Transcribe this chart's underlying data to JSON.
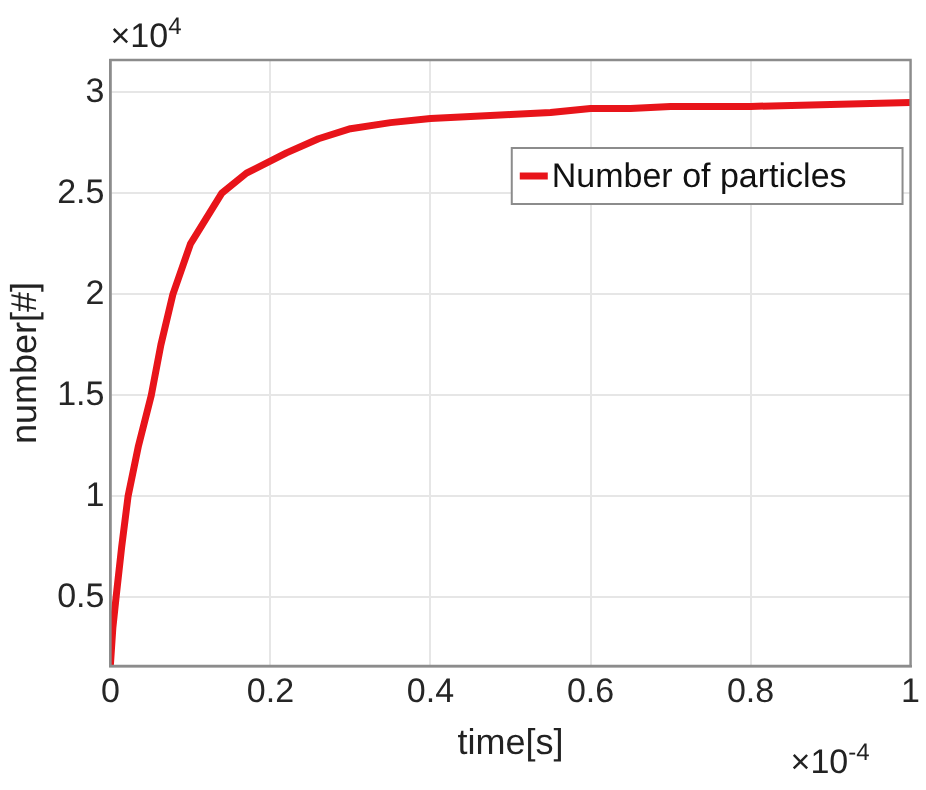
{
  "chart_data": {
    "type": "line",
    "xlabel": "time[s]",
    "ylabel": "number[#]",
    "annotations": [
      "×10$^{4}$",
      "×10$^{-4}$"
    ],
    "xlim": [
      0,
      1
    ],
    "xticks": [
      0,
      0.2,
      0.4,
      0.6,
      0.8,
      1
    ],
    "ylim": [
      0.16,
      3.16
    ],
    "yticks": [
      0.5,
      1,
      1.5,
      2,
      2.5,
      3
    ],
    "grid": true,
    "legend": "top right",
    "marker": "none",
    "line_style": "solid",
    "series": [
      {
        "name": "Number of particles",
        "color": "#e8141a",
        "x": [
          0,
          0.003,
          0.007,
          0.014,
          0.022,
          0.035,
          0.051,
          0.063,
          0.078,
          0.1,
          0.139,
          0.17,
          0.22,
          0.26,
          0.3,
          0.35,
          0.4,
          0.45,
          0.5,
          0.55,
          0.6,
          0.65,
          0.7,
          0.8,
          0.9,
          1.0
        ],
        "values": [
          0.17,
          0.35,
          0.5,
          0.75,
          1.0,
          1.25,
          1.5,
          1.75,
          2.0,
          2.25,
          2.5,
          2.6,
          2.7,
          2.77,
          2.82,
          2.85,
          2.87,
          2.88,
          2.89,
          2.9,
          2.92,
          2.92,
          2.93,
          2.93,
          2.94,
          2.95
        ]
      }
    ]
  }
}
